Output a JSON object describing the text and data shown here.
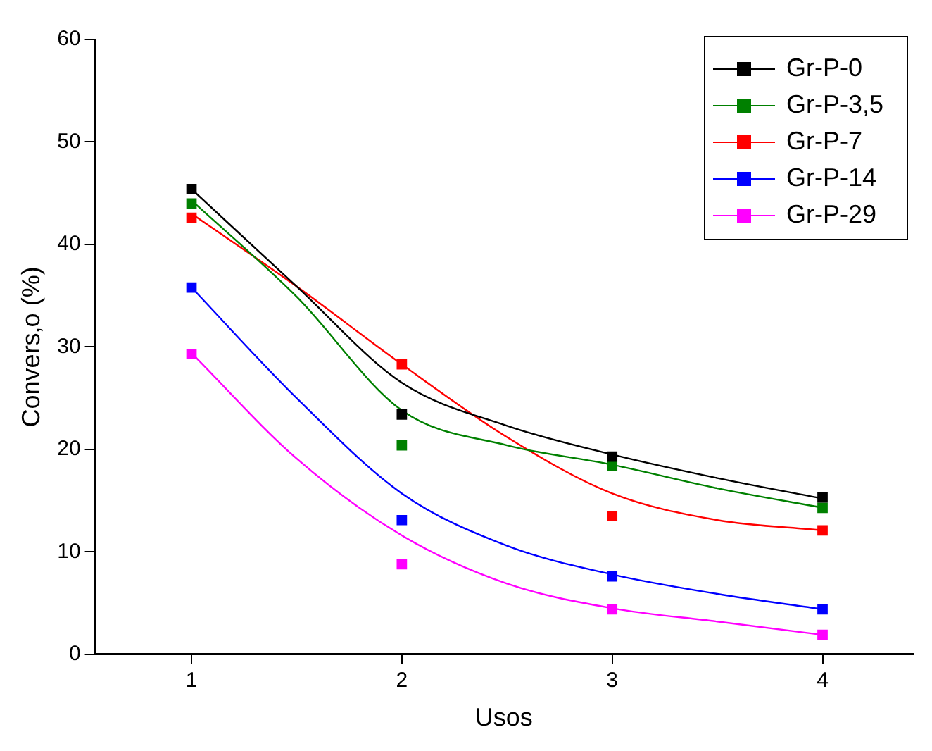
{
  "chart_data": {
    "type": "scatter",
    "xlabel": "Usos",
    "ylabel": "Convers‚o (%)",
    "xlim": [
      0.54,
      4.43
    ],
    "xticks": [
      1,
      2,
      3,
      4
    ],
    "ylim": [
      0,
      60
    ],
    "yticks": [
      0,
      10,
      20,
      30,
      40,
      50,
      60
    ],
    "grid": false,
    "legend": "top right",
    "marker": "square",
    "x": [
      1,
      2,
      3,
      4
    ],
    "series": [
      {
        "name": "Gr-P-0",
        "color": "#000000",
        "values": [
          45.4,
          23.4,
          19.3,
          15.3
        ]
      },
      {
        "name": "Gr-P-3,5",
        "color": "#008000",
        "values": [
          44.0,
          20.4,
          18.4,
          14.3
        ]
      },
      {
        "name": "Gr-P-7",
        "color": "#ff0000",
        "values": [
          42.6,
          28.3,
          13.5,
          12.1
        ]
      },
      {
        "name": "Gr-P-14",
        "color": "#0000ff",
        "values": [
          35.8,
          13.1,
          7.6,
          4.4
        ]
      },
      {
        "name": "Gr-P-29",
        "color": "#ff00ff",
        "values": [
          29.3,
          8.8,
          4.4,
          1.9
        ]
      },
      {
        "type": "line",
        "marker": "none",
        "color": "#000000",
        "x": [
          1,
          1.5,
          2,
          2.5,
          3,
          3.5,
          4
        ],
        "values": [
          45.4,
          35.9,
          26.5,
          22.3,
          19.5,
          17.2,
          15.2
        ]
      },
      {
        "type": "line",
        "marker": "none",
        "color": "#008000",
        "x": [
          1,
          1.5,
          2,
          2.5,
          3,
          3.5,
          4
        ],
        "values": [
          44.3,
          34.9,
          23.8,
          20.4,
          18.5,
          16.2,
          14.3
        ]
      },
      {
        "type": "line",
        "marker": "none",
        "color": "#ff0000",
        "x": [
          1,
          1.5,
          2,
          2.5,
          3,
          3.5,
          4
        ],
        "values": [
          43.0,
          35.9,
          28.3,
          21.2,
          15.7,
          13.1,
          12.1
        ]
      },
      {
        "type": "line",
        "marker": "none",
        "color": "#0000ff",
        "x": [
          1,
          1.5,
          2,
          2.5,
          3,
          3.5,
          4
        ],
        "values": [
          35.8,
          25.0,
          15.7,
          10.6,
          7.8,
          5.9,
          4.4
        ]
      },
      {
        "type": "line",
        "marker": "none",
        "color": "#ff00ff",
        "x": [
          1,
          1.5,
          2,
          2.5,
          3,
          3.5,
          4
        ],
        "values": [
          29.4,
          19.1,
          11.6,
          6.9,
          4.5,
          3.2,
          1.9
        ]
      }
    ]
  }
}
